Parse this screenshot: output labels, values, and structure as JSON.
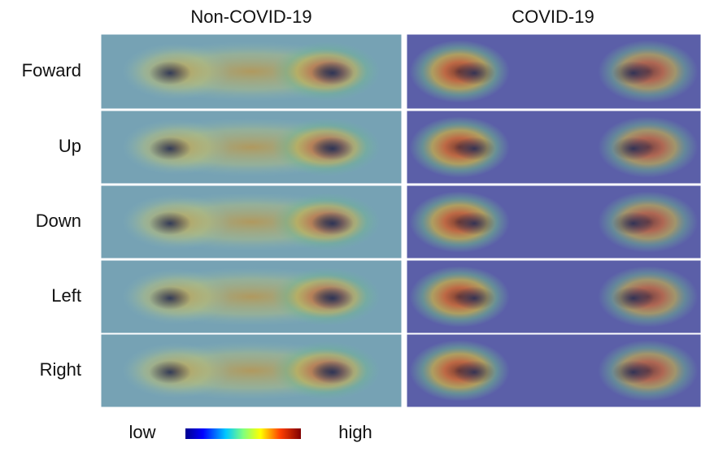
{
  "columns": [
    "Non-COVID-19",
    "COVID-19"
  ],
  "rows": [
    "Foward",
    "Up",
    "Down",
    "Left",
    "Right"
  ],
  "colorbar": {
    "low": "low",
    "high": "high"
  }
}
